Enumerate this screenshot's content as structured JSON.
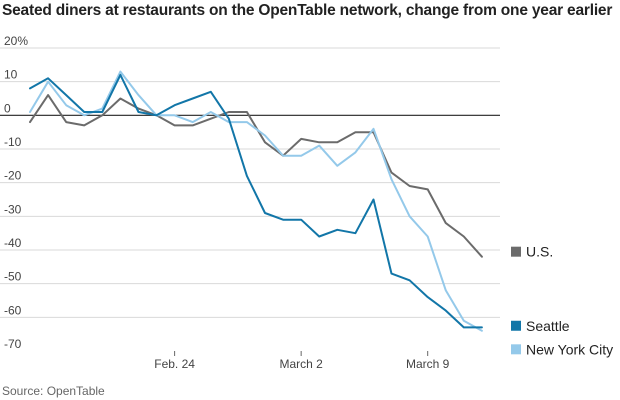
{
  "title": "Seated diners at restaurants on the OpenTable network, change from one year earlier",
  "source": "Source: OpenTable",
  "colors": {
    "us": "#6b6b6b",
    "seattle": "#1276a8",
    "nyc": "#94c9ea",
    "grid": "#d9d9d9",
    "zero": "#222222"
  },
  "chart_data": {
    "type": "line",
    "title": "Seated diners at restaurants on the OpenTable network, change from one year earlier",
    "xlabel": "",
    "ylabel": "",
    "ylim": [
      -70,
      20
    ],
    "y_ticks": [
      20,
      10,
      0,
      -10,
      -20,
      -30,
      -40,
      -50,
      -60,
      -70
    ],
    "y_tick_labels": [
      "20%",
      "10",
      "0",
      "-10",
      "-20",
      "-30",
      "-40",
      "-50",
      "-60",
      "-70"
    ],
    "x_ticks": [
      {
        "x": 8,
        "label": "Feb. 24"
      },
      {
        "x": 15,
        "label": "March 2"
      },
      {
        "x": 22,
        "label": "March 9"
      }
    ],
    "xlim": [
      0,
      26
    ],
    "grid": true,
    "legend": "right, at line ends",
    "series": [
      {
        "name": "U.S.",
        "key": "us",
        "x": [
          0,
          1,
          2,
          3,
          4,
          5,
          6,
          7,
          8,
          9,
          10,
          11,
          12,
          13,
          14,
          15,
          16,
          17,
          18,
          19,
          20,
          21,
          22,
          23,
          24,
          25,
          26
        ],
        "values": [
          -2,
          6,
          -2,
          -3,
          0,
          5,
          2,
          0,
          -3,
          -3,
          -1,
          1,
          1,
          -8,
          -12,
          -7,
          -8,
          -8,
          -5,
          -5,
          -17,
          -21,
          -22,
          -32,
          -36,
          -42,
          null
        ]
      },
      {
        "name": "Seattle",
        "key": "seattle",
        "x": [
          0,
          1,
          2,
          3,
          4,
          5,
          6,
          7,
          8,
          9,
          10,
          11,
          12,
          13,
          14,
          15,
          16,
          17,
          18,
          19,
          20,
          21,
          22,
          23,
          24,
          25,
          26
        ],
        "values": [
          8,
          11,
          6,
          1,
          1,
          12,
          1,
          0,
          3,
          5,
          7,
          -1,
          -18,
          -29,
          -31,
          -31,
          -36,
          -34,
          -35,
          -25,
          -47,
          -49,
          -54,
          -58,
          -63,
          -63,
          null
        ]
      },
      {
        "name": "New York City",
        "key": "nyc",
        "x": [
          0,
          1,
          2,
          3,
          4,
          5,
          6,
          7,
          8,
          9,
          10,
          11,
          12,
          13,
          14,
          15,
          16,
          17,
          18,
          19,
          20,
          21,
          22,
          23,
          24,
          25,
          26
        ],
        "values": [
          1,
          10,
          3,
          0,
          2,
          13,
          6,
          0,
          0,
          -2,
          1,
          -2,
          -2,
          -6,
          -12,
          -12,
          -9,
          -15,
          -11,
          -4,
          -19,
          -30,
          -36,
          -52,
          -61,
          -64,
          null
        ]
      }
    ]
  }
}
